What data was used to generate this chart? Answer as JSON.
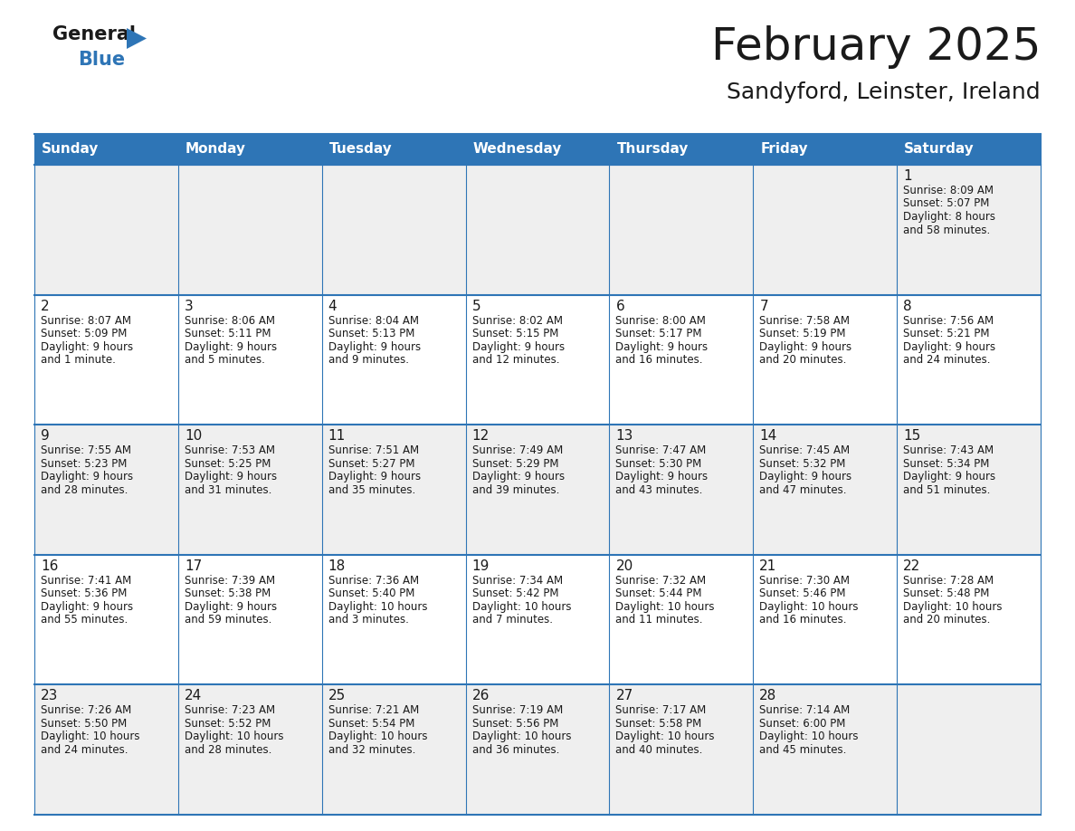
{
  "title": "February 2025",
  "subtitle": "Sandyford, Leinster, Ireland",
  "header_color": "#2E75B6",
  "header_text_color": "#FFFFFF",
  "background_color": "#FFFFFF",
  "cell_bg_odd": "#EFEFEF",
  "cell_bg_even": "#FFFFFF",
  "day_headers": [
    "Sunday",
    "Monday",
    "Tuesday",
    "Wednesday",
    "Thursday",
    "Friday",
    "Saturday"
  ],
  "weeks": [
    [
      {
        "day": "",
        "info": ""
      },
      {
        "day": "",
        "info": ""
      },
      {
        "day": "",
        "info": ""
      },
      {
        "day": "",
        "info": ""
      },
      {
        "day": "",
        "info": ""
      },
      {
        "day": "",
        "info": ""
      },
      {
        "day": "1",
        "info": "Sunrise: 8:09 AM\nSunset: 5:07 PM\nDaylight: 8 hours\nand 58 minutes."
      }
    ],
    [
      {
        "day": "2",
        "info": "Sunrise: 8:07 AM\nSunset: 5:09 PM\nDaylight: 9 hours\nand 1 minute."
      },
      {
        "day": "3",
        "info": "Sunrise: 8:06 AM\nSunset: 5:11 PM\nDaylight: 9 hours\nand 5 minutes."
      },
      {
        "day": "4",
        "info": "Sunrise: 8:04 AM\nSunset: 5:13 PM\nDaylight: 9 hours\nand 9 minutes."
      },
      {
        "day": "5",
        "info": "Sunrise: 8:02 AM\nSunset: 5:15 PM\nDaylight: 9 hours\nand 12 minutes."
      },
      {
        "day": "6",
        "info": "Sunrise: 8:00 AM\nSunset: 5:17 PM\nDaylight: 9 hours\nand 16 minutes."
      },
      {
        "day": "7",
        "info": "Sunrise: 7:58 AM\nSunset: 5:19 PM\nDaylight: 9 hours\nand 20 minutes."
      },
      {
        "day": "8",
        "info": "Sunrise: 7:56 AM\nSunset: 5:21 PM\nDaylight: 9 hours\nand 24 minutes."
      }
    ],
    [
      {
        "day": "9",
        "info": "Sunrise: 7:55 AM\nSunset: 5:23 PM\nDaylight: 9 hours\nand 28 minutes."
      },
      {
        "day": "10",
        "info": "Sunrise: 7:53 AM\nSunset: 5:25 PM\nDaylight: 9 hours\nand 31 minutes."
      },
      {
        "day": "11",
        "info": "Sunrise: 7:51 AM\nSunset: 5:27 PM\nDaylight: 9 hours\nand 35 minutes."
      },
      {
        "day": "12",
        "info": "Sunrise: 7:49 AM\nSunset: 5:29 PM\nDaylight: 9 hours\nand 39 minutes."
      },
      {
        "day": "13",
        "info": "Sunrise: 7:47 AM\nSunset: 5:30 PM\nDaylight: 9 hours\nand 43 minutes."
      },
      {
        "day": "14",
        "info": "Sunrise: 7:45 AM\nSunset: 5:32 PM\nDaylight: 9 hours\nand 47 minutes."
      },
      {
        "day": "15",
        "info": "Sunrise: 7:43 AM\nSunset: 5:34 PM\nDaylight: 9 hours\nand 51 minutes."
      }
    ],
    [
      {
        "day": "16",
        "info": "Sunrise: 7:41 AM\nSunset: 5:36 PM\nDaylight: 9 hours\nand 55 minutes."
      },
      {
        "day": "17",
        "info": "Sunrise: 7:39 AM\nSunset: 5:38 PM\nDaylight: 9 hours\nand 59 minutes."
      },
      {
        "day": "18",
        "info": "Sunrise: 7:36 AM\nSunset: 5:40 PM\nDaylight: 10 hours\nand 3 minutes."
      },
      {
        "day": "19",
        "info": "Sunrise: 7:34 AM\nSunset: 5:42 PM\nDaylight: 10 hours\nand 7 minutes."
      },
      {
        "day": "20",
        "info": "Sunrise: 7:32 AM\nSunset: 5:44 PM\nDaylight: 10 hours\nand 11 minutes."
      },
      {
        "day": "21",
        "info": "Sunrise: 7:30 AM\nSunset: 5:46 PM\nDaylight: 10 hours\nand 16 minutes."
      },
      {
        "day": "22",
        "info": "Sunrise: 7:28 AM\nSunset: 5:48 PM\nDaylight: 10 hours\nand 20 minutes."
      }
    ],
    [
      {
        "day": "23",
        "info": "Sunrise: 7:26 AM\nSunset: 5:50 PM\nDaylight: 10 hours\nand 24 minutes."
      },
      {
        "day": "24",
        "info": "Sunrise: 7:23 AM\nSunset: 5:52 PM\nDaylight: 10 hours\nand 28 minutes."
      },
      {
        "day": "25",
        "info": "Sunrise: 7:21 AM\nSunset: 5:54 PM\nDaylight: 10 hours\nand 32 minutes."
      },
      {
        "day": "26",
        "info": "Sunrise: 7:19 AM\nSunset: 5:56 PM\nDaylight: 10 hours\nand 36 minutes."
      },
      {
        "day": "27",
        "info": "Sunrise: 7:17 AM\nSunset: 5:58 PM\nDaylight: 10 hours\nand 40 minutes."
      },
      {
        "day": "28",
        "info": "Sunrise: 7:14 AM\nSunset: 6:00 PM\nDaylight: 10 hours\nand 45 minutes."
      },
      {
        "day": "",
        "info": ""
      }
    ]
  ],
  "title_fontsize": 36,
  "subtitle_fontsize": 18,
  "header_fontsize": 11,
  "day_num_fontsize": 11,
  "info_fontsize": 8.5
}
